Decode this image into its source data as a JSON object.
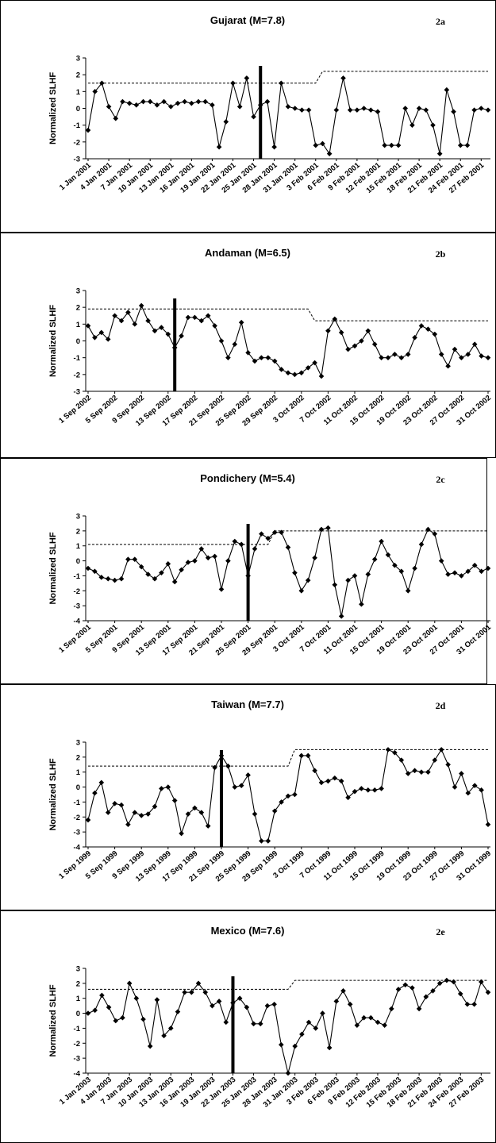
{
  "chart_data": [
    {
      "type": "line",
      "title": "Gujarat (M=7.8)",
      "tag": "2a",
      "ylabel": "Normalized SLHF",
      "ylim": [
        -3,
        3
      ],
      "yticks": [
        3,
        2,
        1,
        0,
        -1,
        -2,
        -3
      ],
      "x_tick_labels": [
        "1 Jan 2001",
        "4 Jan 2001",
        "7 Jan 2001",
        "10 Jan 2001",
        "13 Jan 2001",
        "16 Jan 2001",
        "19 Jan 2001",
        "22 Jan 2001",
        "25 Jan 2001",
        "28 Jan 2001",
        "31 Jan 2001",
        "3 Feb 2001",
        "6 Feb 2001",
        "9 Feb 2001",
        "12 Feb 2001",
        "15 Feb 2001",
        "18 Feb 2001",
        "21 Feb 2001",
        "24 Feb 2001",
        "27 Feb 2001"
      ],
      "event_date": "26 Jan 2001",
      "series": [
        {
          "style": "solid-with-diamond-markers",
          "values": [
            -1.3,
            1.0,
            1.5,
            0.1,
            -0.6,
            0.4,
            0.3,
            0.2,
            0.4,
            0.4,
            0.2,
            0.4,
            0.1,
            0.3,
            0.4,
            0.3,
            0.4,
            0.4,
            0.2,
            -2.3,
            -0.8,
            1.5,
            0.1,
            1.8,
            -0.5,
            0.2,
            0.4,
            -2.3,
            1.5,
            0.1,
            0.0,
            -0.1,
            -0.1,
            -2.2,
            -2.1,
            -2.7,
            -0.1,
            1.8,
            -0.1,
            -0.1,
            0.0,
            -0.1,
            -0.2,
            -2.2,
            -2.2,
            -2.2,
            0.0,
            -1.0,
            0.0,
            -0.1,
            -1.0,
            -2.7,
            1.1,
            -0.2,
            -2.2,
            -2.2,
            -0.1,
            0.0,
            -0.1
          ]
        },
        {
          "style": "dashed",
          "values": [
            1.5,
            1.5,
            1.5,
            1.5,
            1.5,
            1.5,
            1.5,
            1.5,
            1.5,
            1.5,
            1.5,
            1.5,
            1.5,
            1.5,
            1.5,
            1.5,
            1.5,
            1.5,
            1.5,
            1.5,
            1.5,
            1.5,
            1.5,
            1.5,
            1.5,
            1.5,
            1.5,
            1.5,
            1.5,
            1.5,
            1.5,
            1.5,
            1.5,
            1.5,
            2.2,
            2.2,
            2.2,
            2.2,
            2.2,
            2.2,
            2.2,
            2.2,
            2.2,
            2.2,
            2.2,
            2.2,
            2.2,
            2.2,
            2.2,
            2.2,
            2.2,
            2.2,
            2.2,
            2.2,
            2.2,
            2.2,
            2.2,
            2.2,
            2.2
          ]
        }
      ]
    },
    {
      "type": "line",
      "title": "Andaman (M=6.5)",
      "tag": "2b",
      "ylabel": "Normalized SLHF",
      "ylim": [
        -3,
        3
      ],
      "yticks": [
        3,
        2,
        1,
        0,
        -1,
        -2,
        -3
      ],
      "x_tick_labels": [
        "1 Sep 2002",
        "5 Sep 2002",
        "9 Sep 2002",
        "13 Sep 2002",
        "17 Sep 2002",
        "21 Sep 2002",
        "25 Sep 2002",
        "29 Sep 2002",
        "3 Oct 2002",
        "7 Oct 2002",
        "11 Oct 2002",
        "15 Oct 2002",
        "19 Oct 2002",
        "23 Oct 2002",
        "27 Oct 2002",
        "31 Oct 2002"
      ],
      "event_date": "14 Sep 2002",
      "series": [
        {
          "style": "solid-with-diamond-markers",
          "values": [
            0.9,
            0.2,
            0.5,
            0.1,
            1.5,
            1.2,
            1.7,
            1.0,
            2.1,
            1.2,
            0.6,
            0.8,
            0.4,
            -0.4,
            0.3,
            1.4,
            1.4,
            1.2,
            1.5,
            0.9,
            0.0,
            -1.0,
            -0.2,
            1.1,
            -0.7,
            -1.2,
            -1.0,
            -1.0,
            -1.2,
            -1.7,
            -1.9,
            -2.0,
            -1.9,
            -1.6,
            -1.3,
            -2.1,
            0.6,
            1.3,
            0.5,
            -0.5,
            -0.3,
            0.0,
            0.6,
            -0.2,
            -1.0,
            -1.0,
            -0.8,
            -1.0,
            -0.8,
            0.2,
            0.9,
            0.7,
            0.4,
            -0.8,
            -1.5,
            -0.5,
            -1.0,
            -0.8,
            -0.2,
            -0.9,
            -1.0
          ]
        },
        {
          "style": "dashed",
          "values": [
            1.9,
            1.9,
            1.9,
            1.9,
            1.9,
            1.9,
            1.9,
            1.9,
            1.9,
            1.9,
            1.9,
            1.9,
            1.9,
            1.9,
            1.9,
            1.9,
            1.9,
            1.9,
            1.9,
            1.9,
            1.9,
            1.9,
            1.9,
            1.9,
            1.9,
            1.9,
            1.9,
            1.9,
            1.9,
            1.9,
            1.9,
            1.9,
            1.9,
            1.9,
            1.2,
            1.2,
            1.2,
            1.2,
            1.2,
            1.2,
            1.2,
            1.2,
            1.2,
            1.2,
            1.2,
            1.2,
            1.2,
            1.2,
            1.2,
            1.2,
            1.2,
            1.2,
            1.2,
            1.2,
            1.2,
            1.2,
            1.2,
            1.2,
            1.2,
            1.2,
            1.2
          ]
        }
      ]
    },
    {
      "type": "line",
      "title": "Pondichery (M=5.4)",
      "tag": "2c",
      "ylabel": "Normalized SLHF",
      "ylim": [
        -4,
        3
      ],
      "yticks": [
        3,
        2,
        1,
        0,
        -1,
        -2,
        -3,
        -4
      ],
      "x_tick_labels": [
        "1 Sep 2001",
        "5 Sep 2001",
        "9 Sep 2001",
        "13 Sep 2001",
        "17 Sep 2001",
        "21 Sep 2001",
        "25 Sep 2001",
        "29 Sep 2001",
        "3 Oct 2001",
        "7 Oct 2001",
        "11 Oct 2001",
        "15 Oct 2001",
        "19 Oct 2001",
        "23 Oct 2001",
        "27 Oct 2001",
        "31 Oct 2001"
      ],
      "event_date": "25 Sep 2001",
      "series": [
        {
          "style": "solid-with-diamond-markers",
          "values": [
            -0.5,
            -0.7,
            -1.1,
            -1.2,
            -1.3,
            -1.2,
            0.1,
            0.1,
            -0.4,
            -0.9,
            -1.2,
            -0.8,
            -0.2,
            -1.4,
            -0.6,
            -0.1,
            0.0,
            0.8,
            0.2,
            0.3,
            -1.9,
            0.0,
            1.3,
            1.1,
            -1.0,
            0.8,
            1.8,
            1.5,
            1.9,
            1.9,
            0.9,
            -0.8,
            -2.0,
            -1.3,
            0.2,
            2.1,
            2.2,
            -1.6,
            -3.7,
            -1.3,
            -1.0,
            -2.9,
            -0.9,
            0.1,
            1.3,
            0.4,
            -0.3,
            -0.7,
            -2.0,
            -0.5,
            1.1,
            2.1,
            1.8,
            0.0,
            -0.9,
            -0.8,
            -1.0,
            -0.7,
            -0.3,
            -0.7,
            -0.5
          ]
        },
        {
          "style": "dashed",
          "values": [
            1.1,
            1.1,
            1.1,
            1.1,
            1.1,
            1.1,
            1.1,
            1.1,
            1.1,
            1.1,
            1.1,
            1.1,
            1.1,
            1.1,
            1.1,
            1.1,
            1.1,
            1.1,
            1.1,
            1.1,
            1.1,
            1.1,
            1.1,
            1.1,
            1.1,
            1.1,
            1.1,
            1.1,
            2.0,
            2.0,
            2.0,
            2.0,
            2.0,
            2.0,
            2.0,
            2.0,
            2.0,
            2.0,
            2.0,
            2.0,
            2.0,
            2.0,
            2.0,
            2.0,
            2.0,
            2.0,
            2.0,
            2.0,
            2.0,
            2.0,
            2.0,
            2.0,
            2.0,
            2.0,
            2.0,
            2.0,
            2.0,
            2.0,
            2.0,
            2.0,
            2.0
          ]
        }
      ]
    },
    {
      "type": "line",
      "title": "Taiwan (M=7.7)",
      "tag": "2d",
      "ylabel": "Normalized SLHF",
      "ylim": [
        -4,
        3
      ],
      "yticks": [
        3,
        2,
        1,
        0,
        -1,
        -2,
        -3,
        -4
      ],
      "x_tick_labels": [
        "1 Sep 1999",
        "5 Sep 1999",
        "9 Sep 1999",
        "13 Sep 1999",
        "17 Sep 1999",
        "21 Sep 1999",
        "25 Sep 1999",
        "29 Sep 1999",
        "3 Oct 1999",
        "7 Oct 1999",
        "11 Oct 1999",
        "15 Oct 1999",
        "19 Oct 1999",
        "23 Oct 1999",
        "27 Oct 1999",
        "31 Oct 1999"
      ],
      "event_date": "21 Sep 1999",
      "series": [
        {
          "style": "solid-with-diamond-markers",
          "values": [
            -2.2,
            -0.4,
            0.3,
            -1.7,
            -1.1,
            -1.2,
            -2.5,
            -1.7,
            -1.9,
            -1.8,
            -1.3,
            -0.1,
            0.0,
            -0.9,
            -3.1,
            -1.8,
            -1.4,
            -1.7,
            -2.6,
            1.3,
            2.1,
            1.4,
            0.0,
            0.1,
            0.8,
            -1.8,
            -3.6,
            -3.6,
            -1.6,
            -1.0,
            -0.6,
            -0.5,
            2.1,
            2.1,
            1.1,
            0.3,
            0.4,
            0.6,
            0.4,
            -0.7,
            -0.3,
            -0.1,
            -0.2,
            -0.2,
            -0.1,
            2.5,
            2.3,
            1.8,
            0.9,
            1.1,
            1.0,
            1.0,
            1.8,
            2.5,
            1.5,
            0.0,
            0.9,
            -0.4,
            0.1,
            -0.2,
            -2.5
          ]
        },
        {
          "style": "dashed",
          "values": [
            1.4,
            1.4,
            1.4,
            1.4,
            1.4,
            1.4,
            1.4,
            1.4,
            1.4,
            1.4,
            1.4,
            1.4,
            1.4,
            1.4,
            1.4,
            1.4,
            1.4,
            1.4,
            1.4,
            1.4,
            1.4,
            1.4,
            1.4,
            1.4,
            1.4,
            1.4,
            1.4,
            1.4,
            1.4,
            1.4,
            1.4,
            2.5,
            2.5,
            2.5,
            2.5,
            2.5,
            2.5,
            2.5,
            2.5,
            2.5,
            2.5,
            2.5,
            2.5,
            2.5,
            2.5,
            2.5,
            2.5,
            2.5,
            2.5,
            2.5,
            2.5,
            2.5,
            2.5,
            2.5,
            2.5,
            2.5,
            2.5,
            2.5,
            2.5,
            2.5,
            2.5
          ]
        }
      ]
    },
    {
      "type": "line",
      "title": "Mexico (M=7.6)",
      "tag": "2e",
      "ylabel": "Normalized SLHF",
      "ylim": [
        -4,
        3
      ],
      "yticks": [
        3,
        2,
        1,
        0,
        -1,
        -2,
        -3,
        -4
      ],
      "x_tick_labels": [
        "1 Jan 2003",
        "4 Jan 2003",
        "7 Jan 2003",
        "10 Jan 2003",
        "13 Jan 2003",
        "16 Jan 2003",
        "19 Jan 2003",
        "22 Jan 2003",
        "25 Jan 2003",
        "28 Jan 2003",
        "31 Jan 2003",
        "3 Feb 2003",
        "6 Feb 2003",
        "9 Feb 2003",
        "12 Feb 2003",
        "15 Feb 2003",
        "18 Feb 2003",
        "21 Feb 2003",
        "24 Feb 2003",
        "27 Feb 2003"
      ],
      "event_date": "22 Jan 2003",
      "series": [
        {
          "style": "solid-with-diamond-markers",
          "values": [
            0.0,
            0.2,
            1.2,
            0.4,
            -0.5,
            -0.3,
            2.0,
            1.0,
            -0.4,
            -2.2,
            0.9,
            -1.5,
            -1.0,
            0.1,
            1.4,
            1.4,
            2.0,
            1.4,
            0.5,
            0.8,
            -0.6,
            0.7,
            1.0,
            0.4,
            -0.7,
            -0.7,
            0.5,
            0.6,
            -2.1,
            -4.0,
            -2.2,
            -1.4,
            -0.6,
            -1.0,
            0.0,
            -2.3,
            0.8,
            1.5,
            0.6,
            -0.8,
            -0.3,
            -0.3,
            -0.6,
            -0.8,
            0.3,
            1.6,
            1.9,
            1.7,
            0.3,
            1.1,
            1.5,
            2.0,
            2.2,
            2.1,
            1.3,
            0.6,
            0.6,
            2.1,
            1.4
          ]
        },
        {
          "style": "dashed",
          "values": [
            1.6,
            1.6,
            1.6,
            1.6,
            1.6,
            1.6,
            1.6,
            1.6,
            1.6,
            1.6,
            1.6,
            1.6,
            1.6,
            1.6,
            1.6,
            1.6,
            1.6,
            1.6,
            1.6,
            1.6,
            1.6,
            1.6,
            1.6,
            1.6,
            1.6,
            1.6,
            1.6,
            1.6,
            1.6,
            1.6,
            2.2,
            2.2,
            2.2,
            2.2,
            2.2,
            2.2,
            2.2,
            2.2,
            2.2,
            2.2,
            2.2,
            2.2,
            2.2,
            2.2,
            2.2,
            2.2,
            2.2,
            2.2,
            2.2,
            2.2,
            2.2,
            2.2,
            2.2,
            2.2,
            2.2,
            2.2,
            2.2,
            2.2,
            2.2
          ]
        }
      ]
    }
  ]
}
